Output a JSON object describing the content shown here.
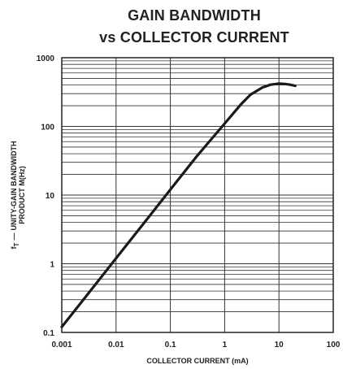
{
  "chart_data": {
    "type": "line",
    "title": "GAIN BANDWIDTH",
    "subtitle": "vs COLLECTOR CURRENT",
    "xlabel": "COLLECTOR CURRENT (mA)",
    "ylabel_line1": "UNITY-GAIN BANDWIDTH",
    "ylabel_line2": "PRODUCT M(Hz)",
    "ylabel_symbol": "f",
    "ylabel_subscript": "T",
    "ylabel_dash": "—",
    "x_scale": "log",
    "y_scale": "log",
    "xlim": [
      0.001,
      100
    ],
    "ylim": [
      0.1,
      1000
    ],
    "x_ticks": [
      "0.001",
      "0.01",
      "0.1",
      "1",
      "10",
      "100"
    ],
    "y_ticks": [
      "0.1",
      "1",
      "10",
      "100",
      "1000"
    ],
    "grid": true,
    "series": [
      {
        "x": [
          0.001,
          0.003,
          0.01,
          0.03,
          0.1,
          0.3,
          1,
          2,
          3,
          5,
          7,
          10,
          13,
          16,
          20
        ],
        "y": [
          0.12,
          0.36,
          1.2,
          3.6,
          12,
          36,
          110,
          210,
          290,
          370,
          405,
          420,
          415,
          405,
          390
        ]
      }
    ]
  }
}
